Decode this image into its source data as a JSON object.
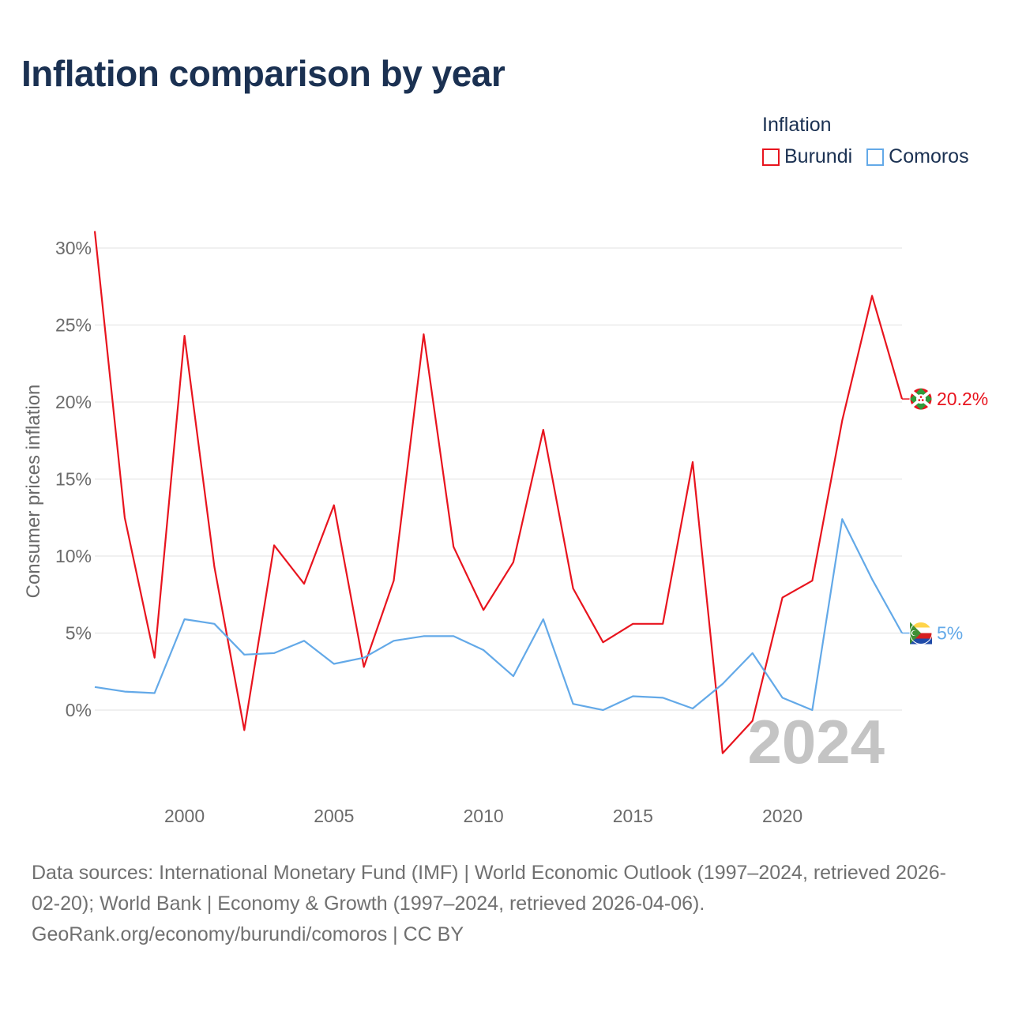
{
  "title": "Inflation comparison by year",
  "legend": {
    "title": "Inflation",
    "items": [
      {
        "label": "Burundi",
        "color": "#e8141e"
      },
      {
        "label": "Comoros",
        "color": "#63a9e8"
      }
    ]
  },
  "chart_data": {
    "type": "line",
    "title": "Inflation comparison by year",
    "xlabel": "",
    "ylabel": "Consumer prices inflation",
    "xlim": [
      1997,
      2024
    ],
    "ylim": [
      -5.5,
      31
    ],
    "x_ticks": [
      2000,
      2005,
      2010,
      2015,
      2020
    ],
    "y_ticks": [
      0,
      5,
      10,
      15,
      20,
      25,
      30
    ],
    "y_tick_labels": [
      "0%",
      "5%",
      "10%",
      "15%",
      "20%",
      "25%",
      "30%"
    ],
    "grid": true,
    "x": [
      1997,
      1998,
      1999,
      2000,
      2001,
      2002,
      2003,
      2004,
      2005,
      2006,
      2007,
      2008,
      2009,
      2010,
      2011,
      2012,
      2013,
      2014,
      2015,
      2016,
      2017,
      2018,
      2019,
      2020,
      2021,
      2022,
      2023,
      2024
    ],
    "series": [
      {
        "name": "Burundi",
        "color": "#e8141e",
        "end_label": "20.2%",
        "values": [
          31.1,
          12.5,
          3.4,
          24.3,
          9.3,
          -1.3,
          10.7,
          8.2,
          13.3,
          2.8,
          8.4,
          24.4,
          10.6,
          6.5,
          9.6,
          18.2,
          7.9,
          4.4,
          5.6,
          5.6,
          16.1,
          -2.8,
          -0.7,
          7.3,
          8.4,
          18.8,
          26.9,
          20.2
        ]
      },
      {
        "name": "Comoros",
        "color": "#63a9e8",
        "end_label": "5%",
        "values": [
          1.5,
          1.2,
          1.1,
          5.9,
          5.6,
          3.6,
          3.7,
          4.5,
          3.0,
          3.4,
          4.5,
          4.8,
          4.8,
          3.9,
          2.2,
          5.9,
          0.4,
          0.0,
          0.9,
          0.8,
          0.1,
          1.7,
          3.7,
          0.8,
          0.0,
          12.4,
          8.5,
          5.0
        ]
      }
    ],
    "year_label": "2024"
  },
  "footer": {
    "line1": "Data sources: International Monetary Fund (IMF) | World Economic Outlook (1997–2024, retrieved 2026-",
    "line2": "02-20); World Bank | Economy & Growth (1997–2024, retrieved 2026-04-06).",
    "line3": "GeoRank.org/economy/burundi/comoros | CC BY"
  }
}
